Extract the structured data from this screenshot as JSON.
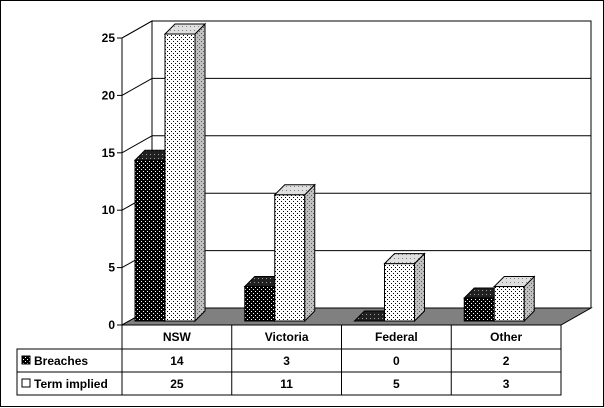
{
  "chart_data": {
    "type": "bar",
    "style": "3d-clustered-column-with-data-table",
    "categories": [
      "NSW",
      "Victoria",
      "Federal",
      "Other"
    ],
    "series": [
      {
        "name": "Breaches",
        "values": [
          14,
          3,
          0,
          2
        ],
        "pattern": "dotted-black",
        "color": "#000000"
      },
      {
        "name": "Term implied",
        "values": [
          25,
          11,
          5,
          3
        ],
        "pattern": "dotted-white",
        "color": "#ffffff"
      }
    ],
    "ylim": [
      0,
      25
    ],
    "yticks": [
      0,
      5,
      10,
      15,
      20,
      25
    ],
    "grid": true,
    "floor_color": "#808080",
    "title": "",
    "xlabel": "",
    "ylabel": ""
  }
}
